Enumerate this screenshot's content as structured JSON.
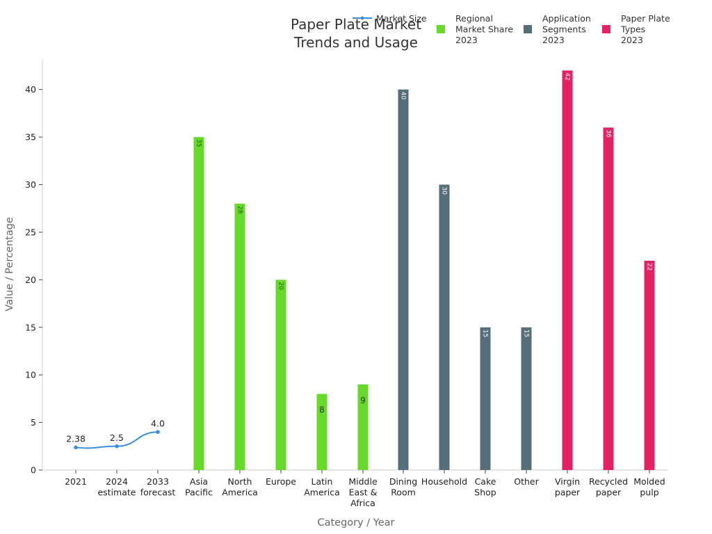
{
  "chart_data": {
    "type": "bar",
    "title_lines": [
      "Paper Plate Market",
      "Trends and Usage"
    ],
    "xlabel": "Category / Year",
    "ylabel": "Value / Percentage",
    "ylim": [
      0,
      44
    ],
    "yticks": [
      0,
      5,
      10,
      15,
      20,
      25,
      30,
      35,
      40
    ],
    "grid": false,
    "legend_position": "top-right",
    "categories": [
      [
        "2021"
      ],
      [
        "2024",
        "estimate"
      ],
      [
        "2033",
        "forecast"
      ],
      [
        "Asia",
        "Pacific"
      ],
      [
        "North",
        "America"
      ],
      [
        "Europe"
      ],
      [
        "Latin",
        "America"
      ],
      [
        "Middle",
        "East &",
        "Africa"
      ],
      [
        "Dining",
        "Room"
      ],
      [
        "Household"
      ],
      [
        "Cake",
        "Shop"
      ],
      [
        "Other"
      ],
      [
        "Virgin",
        "paper"
      ],
      [
        "Recycled",
        "paper"
      ],
      [
        "Molded",
        "pulp"
      ]
    ],
    "series": [
      {
        "name": "Market Size",
        "type": "line",
        "color": "#3a8ee0",
        "points": [
          {
            "category_index": 0,
            "y": 2.38,
            "label": "2.38"
          },
          {
            "category_index": 1,
            "y": 2.5,
            "label": "2.5"
          },
          {
            "category_index": 2,
            "y": 4.0,
            "label": "4.0"
          }
        ]
      },
      {
        "name": [
          "Regional",
          "Market Share",
          "2023"
        ],
        "type": "bar",
        "color": "#66d92a",
        "points": [
          {
            "category_index": 3,
            "y": 35,
            "label": "35"
          },
          {
            "category_index": 4,
            "y": 28,
            "label": "28"
          },
          {
            "category_index": 5,
            "y": 20,
            "label": "20"
          },
          {
            "category_index": 6,
            "y": 8,
            "label": "8"
          },
          {
            "category_index": 7,
            "y": 9,
            "label": "9"
          }
        ]
      },
      {
        "name": [
          "Application",
          "Segments",
          "2023"
        ],
        "type": "bar",
        "color": "#546e7a",
        "points": [
          {
            "category_index": 8,
            "y": 40,
            "label": "40"
          },
          {
            "category_index": 9,
            "y": 30,
            "label": "30"
          },
          {
            "category_index": 10,
            "y": 15,
            "label": "15"
          },
          {
            "category_index": 11,
            "y": 15,
            "label": "15"
          }
        ]
      },
      {
        "name": [
          "Paper Plate",
          "Types",
          "2023"
        ],
        "type": "bar",
        "color": "#e42262",
        "points": [
          {
            "category_index": 12,
            "y": 42,
            "label": "42"
          },
          {
            "category_index": 13,
            "y": 36,
            "label": "36"
          },
          {
            "category_index": 14,
            "y": 22,
            "label": "22"
          }
        ]
      }
    ]
  }
}
